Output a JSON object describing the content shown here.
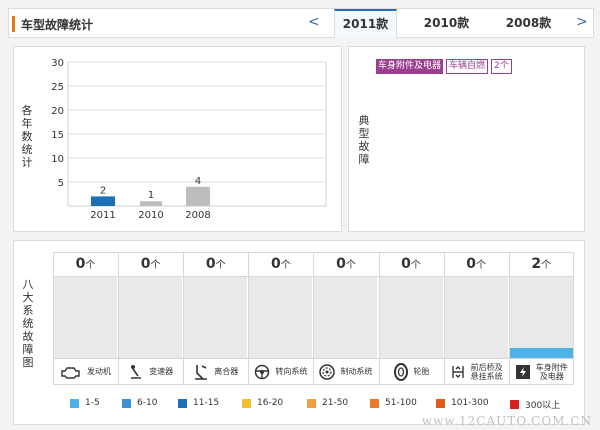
{
  "header": {
    "title": "车型故障统计",
    "prev_arrow": "<",
    "next_arrow": ">",
    "tabs": [
      {
        "label": "2011款",
        "active": true
      },
      {
        "label": "2010款",
        "active": false
      },
      {
        "label": "2008款",
        "active": false
      }
    ]
  },
  "yearly_chart": {
    "side_label": [
      "各",
      "年",
      "数",
      "统",
      "计"
    ],
    "y_ticks": [
      "30",
      "25",
      "20",
      "15",
      "10",
      "5"
    ],
    "bars": [
      {
        "year": "2011",
        "label": "2",
        "color": "#1f6fb7"
      },
      {
        "year": "2010",
        "label": "1",
        "color": "#bdbdbd"
      },
      {
        "year": "2008",
        "label": "4",
        "color": "#bdbdbd"
      }
    ]
  },
  "chart_data": {
    "type": "bar",
    "title": "",
    "xlabel": "",
    "ylabel": "各年数统计",
    "categories": [
      "2011",
      "2010",
      "2008"
    ],
    "values": [
      2,
      1,
      4
    ],
    "ylim": [
      0,
      30
    ],
    "y_ticks": [
      5,
      10,
      15,
      20,
      25,
      30
    ],
    "grid": true,
    "colors": [
      "#1f6fb7",
      "#bdbdbd",
      "#bdbdbd"
    ]
  },
  "typical_faults": {
    "side_label": [
      "典",
      "型",
      "故",
      "障"
    ],
    "category": "车身附件及电器",
    "item": "车辆自燃",
    "count": "2个",
    "colors": {
      "category_bg": "#9b3f8f",
      "text": "#9b3f8f"
    }
  },
  "systems": {
    "side_label": [
      "八",
      "大",
      "系",
      "统",
      "故",
      "障",
      "图"
    ],
    "unit": "个",
    "items": [
      {
        "count": "0",
        "name": "发动机",
        "icon": "engine-icon",
        "level": 0
      },
      {
        "count": "0",
        "name": "变速器",
        "icon": "gearshift-icon",
        "level": 0
      },
      {
        "count": "0",
        "name": "离合器",
        "icon": "clutch-pedal-icon",
        "level": 0
      },
      {
        "count": "0",
        "name": "转向系统",
        "icon": "steering-wheel-icon",
        "level": 0
      },
      {
        "count": "0",
        "name": "制动系统",
        "icon": "brake-disc-icon",
        "level": 0
      },
      {
        "count": "0",
        "name": "轮胎",
        "icon": "tire-icon",
        "level": 0
      },
      {
        "count": "0",
        "name": "前后桥及\n悬挂系统",
        "icon": "suspension-icon",
        "level": 0
      },
      {
        "count": "2",
        "name": "车身附件\n及电器",
        "icon": "body-electric-icon",
        "level": 1
      }
    ],
    "bar_color": "#4db3e6"
  },
  "legend": [
    {
      "label": "1-5",
      "color": "#4db3e6"
    },
    {
      "label": "6-10",
      "color": "#3d8fd6"
    },
    {
      "label": "11-15",
      "color": "#1f6fb7"
    },
    {
      "label": "16-20",
      "color": "#f2c12e"
    },
    {
      "label": "21-50",
      "color": "#f0a040"
    },
    {
      "label": "51-100",
      "color": "#ec7a2c"
    },
    {
      "label": "101-300",
      "color": "#e25a1c"
    },
    {
      "label": "300以上",
      "color": "#d62020"
    }
  ],
  "watermark": "www.12CAUTO.COM.CN"
}
